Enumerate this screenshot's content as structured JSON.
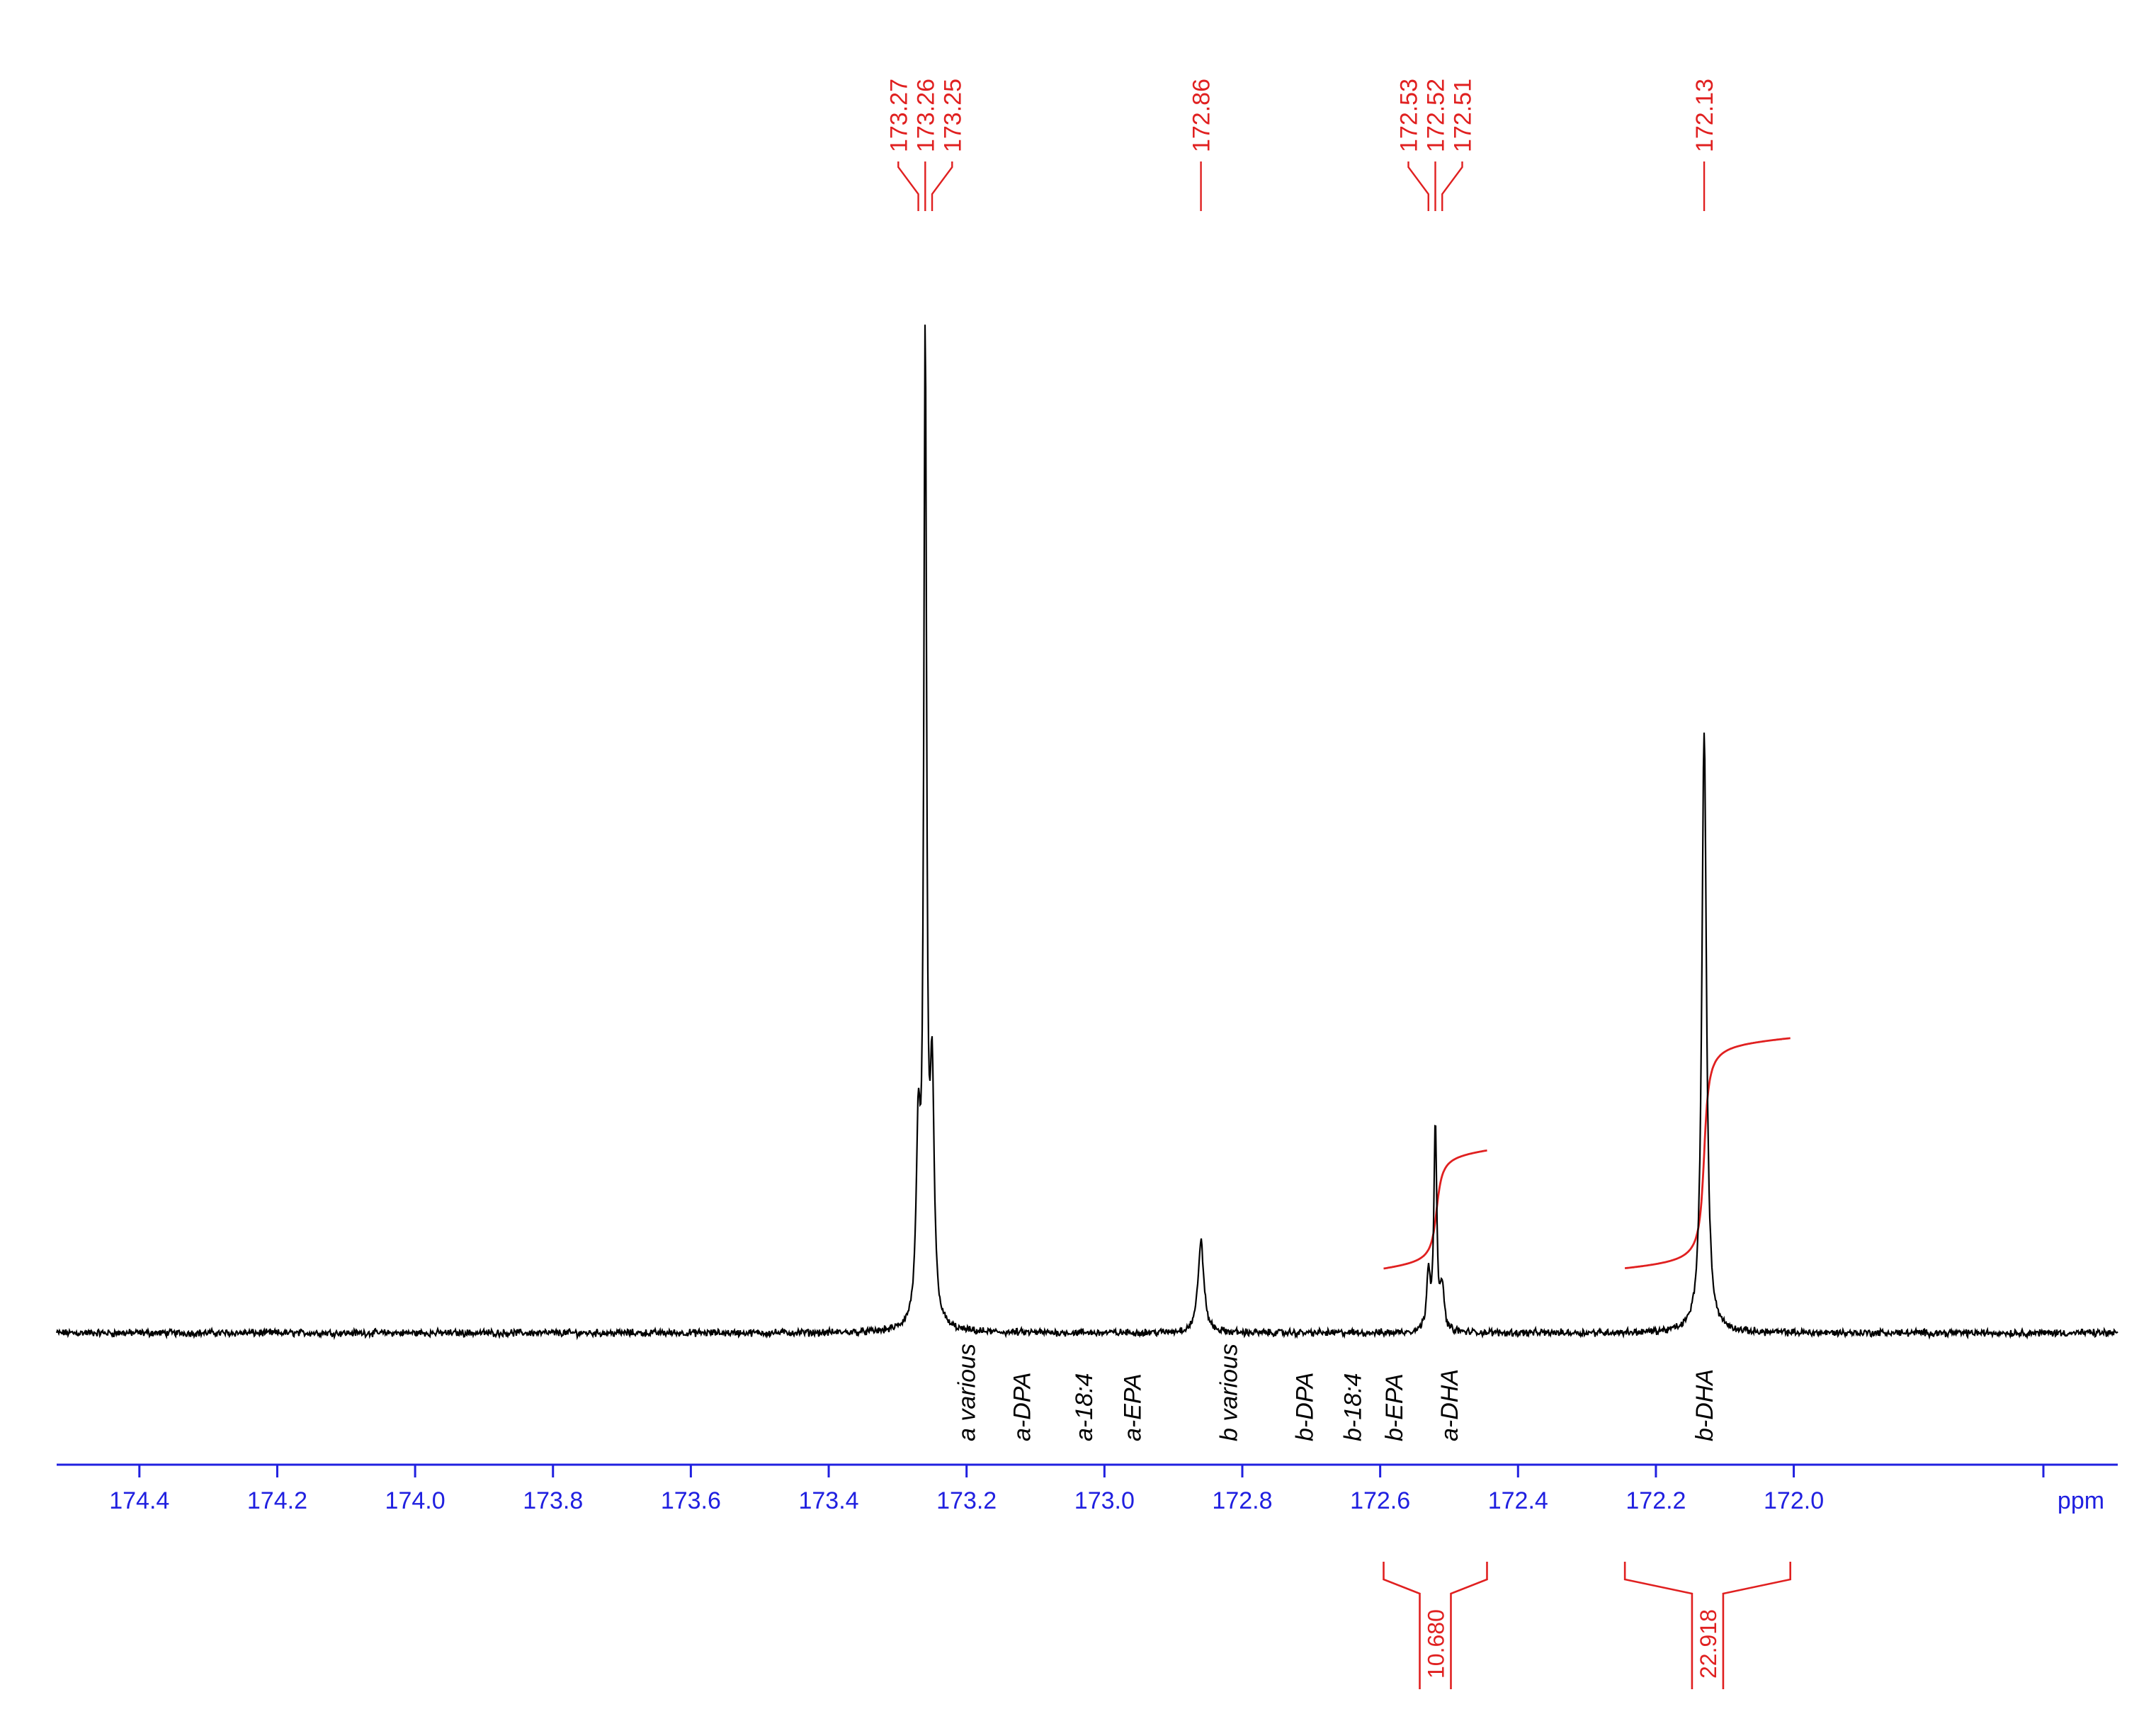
{
  "chart_data": {
    "type": "line",
    "title": "",
    "xlabel": "ppm",
    "ylabel": "",
    "xlim": [
      174.52,
      171.53
    ],
    "x_reversed": true,
    "ylim": [
      0,
      100
    ],
    "grid": false,
    "x_ticks": [
      {
        "value": 174.4,
        "label": "174.4"
      },
      {
        "value": 174.2,
        "label": "174.2"
      },
      {
        "value": 174.0,
        "label": "174.0"
      },
      {
        "value": 173.8,
        "label": "173.8"
      },
      {
        "value": 173.6,
        "label": "173.6"
      },
      {
        "value": 173.4,
        "label": "173.4"
      },
      {
        "value": 173.2,
        "label": "173.2"
      },
      {
        "value": 173.0,
        "label": "173.0"
      },
      {
        "value": 172.8,
        "label": "172.8"
      },
      {
        "value": 172.6,
        "label": "172.6"
      },
      {
        "value": 172.4,
        "label": "172.4"
      },
      {
        "value": 172.2,
        "label": "172.2"
      },
      {
        "value": 172.0,
        "label": "172.0"
      }
    ],
    "x_unit_label": "ppm",
    "series": [
      {
        "color": "#000000",
        "peaks": [
          {
            "x": 173.27,
            "height": 18.5,
            "width": 0.0035
          },
          {
            "x": 173.26,
            "height": 100,
            "width": 0.0025
          },
          {
            "x": 173.25,
            "height": 24.0,
            "width": 0.0035
          },
          {
            "x": 172.86,
            "height": 9.5,
            "width": 0.005
          },
          {
            "x": 172.53,
            "height": 6.0,
            "width": 0.003
          },
          {
            "x": 172.52,
            "height": 21.0,
            "width": 0.0025
          },
          {
            "x": 172.51,
            "height": 4.5,
            "width": 0.003
          },
          {
            "x": 172.13,
            "height": 62.0,
            "width": 0.004
          }
        ]
      }
    ],
    "peak_labels": {
      "color": "#e02020",
      "groups": [
        {
          "items": [
            {
              "x": 173.27,
              "label": "173.27"
            },
            {
              "x": 173.26,
              "label": "173.26"
            },
            {
              "x": 173.25,
              "label": "173.25"
            }
          ]
        },
        {
          "items": [
            {
              "x": 172.86,
              "label": "172.86"
            }
          ]
        },
        {
          "items": [
            {
              "x": 172.53,
              "label": "172.53"
            },
            {
              "x": 172.52,
              "label": "172.52"
            },
            {
              "x": 172.51,
              "label": "172.51"
            }
          ]
        },
        {
          "items": [
            {
              "x": 172.13,
              "label": "172.13"
            }
          ]
        }
      ]
    },
    "integrals": [
      {
        "from": 172.595,
        "to": 172.445,
        "value": "10.680",
        "rise": 11.5
      },
      {
        "from": 172.245,
        "to": 172.005,
        "value": "22.918",
        "rise": 23.0
      }
    ],
    "assignments": [
      {
        "x": 173.2,
        "label": "a various"
      },
      {
        "x": 173.12,
        "label": "a-DPA"
      },
      {
        "x": 173.03,
        "label": "a-18:4"
      },
      {
        "x": 172.96,
        "label": "a-EPA"
      },
      {
        "x": 172.82,
        "label": "b various"
      },
      {
        "x": 172.71,
        "label": "b-DPA"
      },
      {
        "x": 172.64,
        "label": "b-18:4"
      },
      {
        "x": 172.58,
        "label": "b-EPA"
      },
      {
        "x": 172.5,
        "label": "a-DHA"
      },
      {
        "x": 172.13,
        "label": "b-DHA"
      }
    ]
  }
}
